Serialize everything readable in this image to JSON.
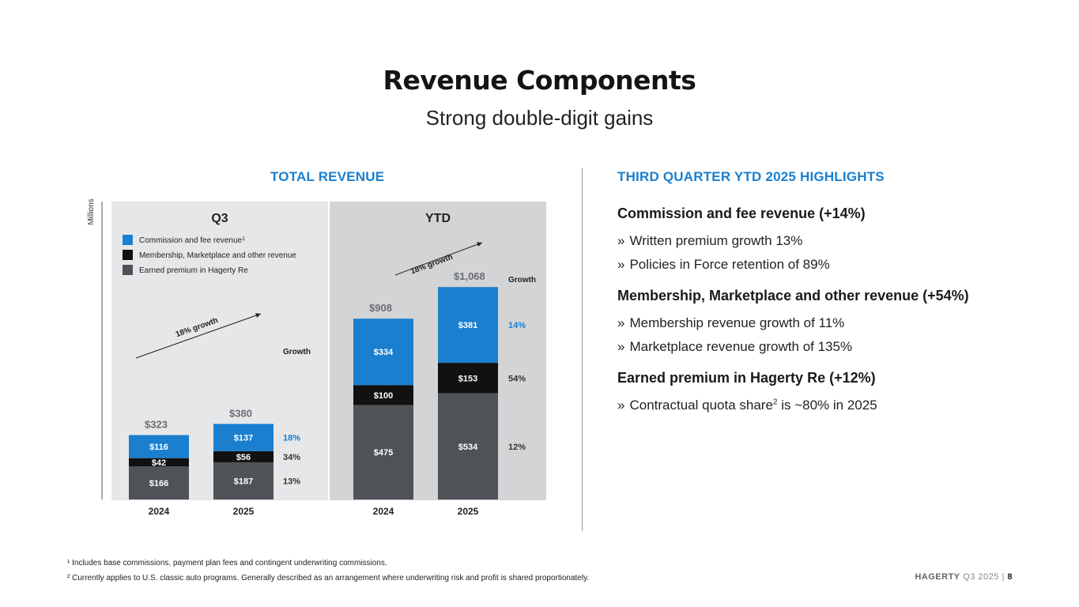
{
  "title": "Revenue Components",
  "subtitle": "Strong double-digit gains",
  "left_heading": "TOTAL REVENUE",
  "right_heading": "THIRD QUARTER YTD 2025 HIGHLIGHTS",
  "highlights": [
    {
      "heading": "Commission and fee revenue (+14%)",
      "bullets": [
        "Written premium growth 13%",
        "Policies in Force retention of 89%"
      ]
    },
    {
      "heading": "Membership, Marketplace and other revenue (+54%)",
      "bullets": [
        "Membership revenue growth of 11%",
        "Marketplace revenue growth of 135%"
      ]
    },
    {
      "heading": "Earned premium in Hagerty Re (+12%)",
      "bullets": [
        "Contractual quota share",
        "2",
        " is ~80% in 2025"
      ]
    }
  ],
  "bullet_mark": "»",
  "footnotes": [
    "¹ Includes base commissions, payment plan fees and contingent underwriting commissions.",
    "² Currently applies to U.S. classic auto programs. Generally described as an arrangement where underwriting risk and profit is shared proportionately."
  ],
  "page_footer": {
    "brand": "HAGERTY",
    "period": "Q3 2025",
    "separator": "|",
    "page": "8"
  },
  "colors": {
    "commission": "#1a7fcf",
    "membership": "#111111",
    "earned": "#4f5257",
    "panel_q3": "#e6e7e8",
    "panel_ytd": "#d3d4d6",
    "accent": "#1a7fcf"
  },
  "chart_data": {
    "type": "bar",
    "stacked": true,
    "unit_label": "Millions",
    "growth_header": "Growth",
    "legend": [
      "Commission and fee revenue",
      "Membership, Marketplace and other revenue",
      "Earned premium in Hagerty Re"
    ],
    "legend_sup": "1",
    "panels": [
      {
        "name": "Q3",
        "categories": [
          "2024",
          "2025"
        ],
        "series": [
          {
            "name": "Earned premium in Hagerty Re",
            "values": [
              166,
              187
            ],
            "labels": [
              "$166",
              "$187"
            ],
            "growth": "13%"
          },
          {
            "name": "Membership, Marketplace and other revenue",
            "values": [
              42,
              56
            ],
            "labels": [
              "$42",
              "$56"
            ],
            "growth": "34%"
          },
          {
            "name": "Commission and fee revenue",
            "values": [
              116,
              137
            ],
            "labels": [
              "$116",
              "$137"
            ],
            "growth": "18%"
          }
        ],
        "totals": [
          323,
          380
        ],
        "total_labels": [
          "$323",
          "$380"
        ],
        "growth_arrow": "18% growth"
      },
      {
        "name": "YTD",
        "categories": [
          "2024",
          "2025"
        ],
        "series": [
          {
            "name": "Earned premium in Hagerty Re",
            "values": [
              475,
              534
            ],
            "labels": [
              "$475",
              "$534"
            ],
            "growth": "12%"
          },
          {
            "name": "Membership, Marketplace and other revenue",
            "values": [
              100,
              153
            ],
            "labels": [
              "$100",
              "$153"
            ],
            "growth": "54%"
          },
          {
            "name": "Commission and fee revenue",
            "values": [
              334,
              381
            ],
            "labels": [
              "$334",
              "$381"
            ],
            "growth": "14%"
          }
        ],
        "totals": [
          908,
          1068
        ],
        "total_labels": [
          "$908",
          "$1,068"
        ],
        "growth_arrow": "18% growth"
      }
    ]
  }
}
